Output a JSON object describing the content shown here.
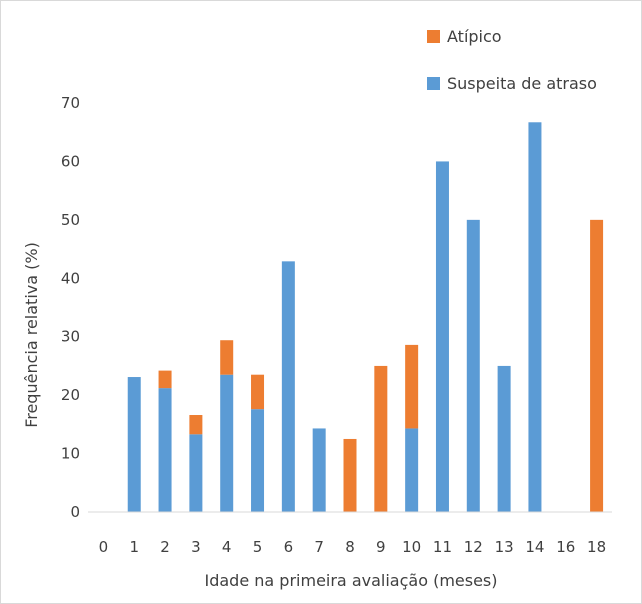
{
  "chart_data": {
    "type": "bar",
    "stacked": true,
    "categories": [
      "0",
      "1",
      "2",
      "3",
      "4",
      "5",
      "6",
      "7",
      "8",
      "9",
      "10",
      "11",
      "12",
      "13",
      "14",
      "16",
      "18"
    ],
    "series": [
      {
        "name": "Suspeita de atraso",
        "color": "#5b9bd5",
        "values": [
          0,
          23.1,
          21.2,
          13.3,
          23.5,
          17.6,
          42.9,
          14.3,
          0,
          0,
          14.3,
          60,
          50,
          25,
          66.7,
          0,
          0
        ]
      },
      {
        "name": "Atípico",
        "color": "#ed7d31",
        "values": [
          0,
          0,
          3.0,
          3.3,
          5.9,
          5.9,
          0,
          0,
          12.5,
          25,
          14.3,
          0,
          0,
          0,
          0,
          0,
          50
        ]
      }
    ],
    "legend_order": [
      "Atípico",
      "Suspeita de atraso"
    ],
    "legend_position": "top-right",
    "xlabel": "Idade na primeira avaliação (meses)",
    "ylabel": "Frequência relativa (%)",
    "ylim": [
      0,
      70
    ],
    "yticks": [
      0,
      10,
      20,
      30,
      40,
      50,
      60,
      70
    ],
    "grid": false
  }
}
